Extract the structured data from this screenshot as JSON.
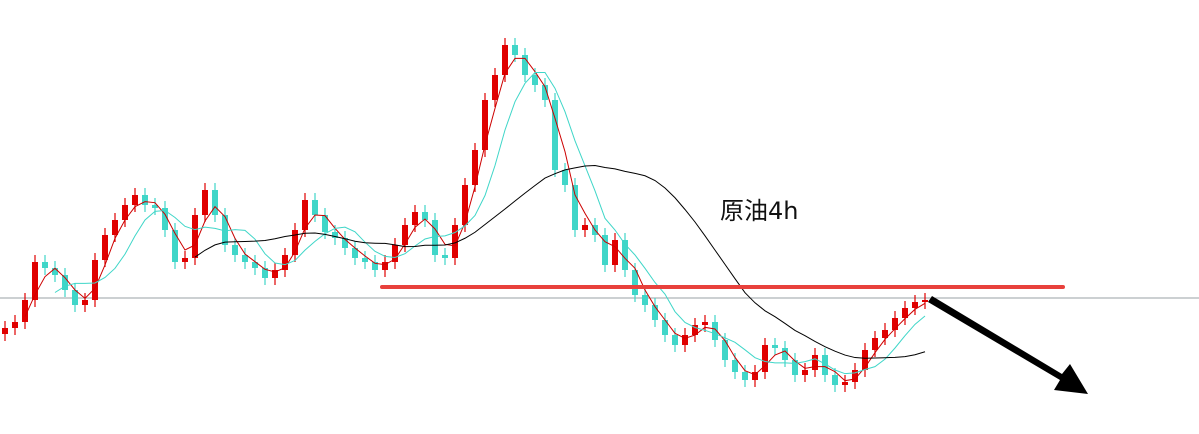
{
  "chart_data": {
    "type": "candlestick",
    "title": "原油4h",
    "ylim": [
      50,
      93.4
    ],
    "up_color": "#e00000",
    "down_color": "#3fd6c8",
    "open": [
      60.0,
      60.6,
      61.2,
      63.4,
      67.2,
      66.6,
      65.9,
      64.4,
      62.9,
      63.4,
      67.4,
      69.9,
      71.4,
      72.9,
      73.9,
      72.9,
      72.6,
      70.4,
      67.2,
      67.6,
      71.9,
      74.4,
      71.9,
      68.9,
      67.9,
      67.2,
      66.6,
      65.6,
      66.4,
      67.9,
      70.4,
      73.4,
      71.9,
      70.2,
      69.6,
      68.6,
      67.6,
      67.2,
      66.4,
      67.2,
      68.9,
      70.9,
      72.2,
      71.4,
      67.9,
      67.6,
      70.9,
      74.9,
      78.4,
      83.4,
      85.9,
      88.9,
      87.9,
      85.9,
      84.9,
      83.4,
      76.4,
      74.9,
      70.4,
      70.9,
      69.9,
      66.9,
      69.4,
      66.4,
      63.9,
      62.9,
      61.4,
      59.9,
      58.9,
      59.9,
      60.9,
      61.2,
      59.4,
      57.4,
      56.2,
      55.4,
      56.2,
      58.9,
      58.6,
      57.4,
      55.9,
      56.4,
      57.9,
      55.9,
      54.9,
      55.2,
      56.4,
      58.4,
      59.6,
      60.4,
      61.6,
      62.6,
      63.2
    ],
    "high": [
      61.3,
      61.9,
      64.1,
      67.9,
      67.9,
      67.3,
      66.6,
      65.1,
      64.1,
      68.1,
      70.6,
      72.1,
      73.6,
      74.6,
      74.6,
      73.6,
      73.3,
      71.1,
      68.3,
      72.6,
      75.1,
      75.1,
      72.6,
      69.6,
      68.6,
      67.9,
      67.3,
      67.1,
      68.6,
      71.1,
      74.1,
      74.1,
      72.6,
      70.9,
      70.3,
      69.3,
      68.3,
      67.9,
      67.9,
      69.6,
      71.6,
      72.9,
      72.9,
      72.1,
      68.6,
      71.6,
      75.6,
      79.1,
      84.1,
      86.6,
      89.6,
      89.6,
      88.6,
      86.6,
      85.6,
      84.1,
      77.1,
      75.6,
      71.6,
      71.6,
      70.6,
      70.1,
      70.1,
      67.1,
      64.6,
      63.6,
      62.1,
      60.6,
      60.6,
      61.6,
      61.9,
      61.9,
      60.1,
      58.1,
      56.9,
      56.9,
      59.6,
      59.6,
      59.3,
      58.1,
      57.1,
      58.6,
      58.6,
      56.6,
      55.9,
      57.1,
      59.1,
      60.3,
      61.1,
      62.3,
      63.3,
      63.9,
      64.1
    ],
    "low": [
      59.3,
      59.9,
      60.5,
      62.7,
      65.9,
      65.2,
      63.7,
      62.2,
      62.2,
      62.7,
      66.7,
      69.2,
      70.7,
      72.2,
      72.2,
      71.9,
      69.7,
      66.5,
      66.5,
      66.9,
      71.2,
      71.2,
      68.2,
      67.2,
      66.5,
      65.9,
      64.9,
      64.9,
      65.7,
      67.2,
      69.7,
      71.2,
      69.5,
      68.9,
      67.9,
      66.9,
      66.5,
      65.7,
      65.7,
      66.5,
      68.2,
      70.2,
      70.7,
      67.2,
      66.9,
      66.9,
      70.2,
      74.2,
      77.7,
      82.7,
      85.2,
      87.2,
      85.2,
      84.2,
      82.7,
      75.7,
      74.2,
      69.7,
      69.7,
      69.2,
      66.2,
      66.2,
      65.7,
      63.2,
      62.2,
      60.7,
      59.2,
      58.2,
      58.2,
      59.2,
      60.2,
      58.7,
      56.7,
      55.5,
      54.7,
      54.7,
      55.5,
      57.9,
      56.7,
      55.2,
      55.2,
      55.7,
      55.2,
      54.2,
      54.2,
      54.5,
      55.7,
      57.7,
      58.9,
      59.7,
      60.9,
      61.9,
      62.5
    ],
    "close": [
      60.6,
      61.2,
      63.4,
      67.2,
      66.6,
      65.9,
      64.4,
      62.9,
      63.4,
      67.4,
      69.9,
      71.4,
      72.9,
      73.9,
      72.9,
      72.6,
      70.4,
      67.2,
      67.6,
      71.9,
      74.4,
      71.9,
      68.9,
      67.9,
      67.2,
      66.6,
      65.6,
      66.4,
      67.9,
      70.4,
      73.4,
      71.9,
      70.2,
      69.6,
      68.6,
      67.6,
      67.2,
      66.4,
      67.2,
      68.9,
      70.9,
      72.2,
      71.4,
      67.9,
      67.6,
      70.9,
      74.9,
      78.4,
      83.4,
      85.9,
      88.9,
      87.9,
      85.9,
      84.9,
      83.4,
      76.4,
      74.9,
      70.4,
      70.9,
      69.9,
      66.9,
      69.4,
      66.4,
      63.9,
      62.9,
      61.4,
      59.9,
      58.9,
      59.9,
      60.9,
      61.2,
      59.4,
      57.4,
      56.2,
      55.4,
      56.2,
      58.9,
      58.6,
      57.4,
      55.9,
      56.4,
      57.9,
      55.9,
      54.9,
      55.2,
      56.4,
      58.4,
      59.6,
      60.4,
      61.6,
      62.6,
      63.2,
      63.4
    ],
    "moving_averages": [
      {
        "period": 3,
        "color": "#cc0000"
      },
      {
        "period": 6,
        "color": "#3fd6c8"
      },
      {
        "period": 20,
        "color": "#000000"
      }
    ],
    "reference_line": {
      "value": 63.6,
      "color": "#9aa0a6"
    },
    "resistance_line": {
      "value": 64.7,
      "color": "#e8413c"
    }
  }
}
